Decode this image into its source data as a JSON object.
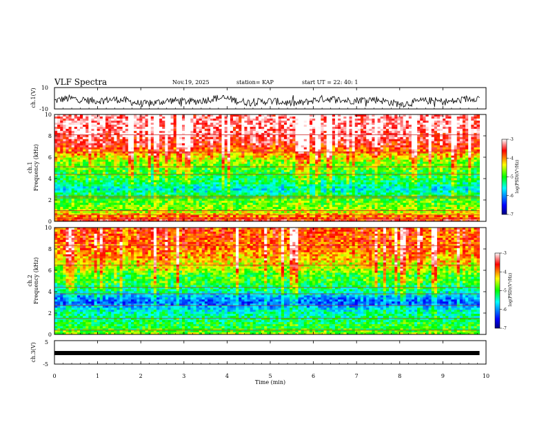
{
  "header": {
    "title": "VLF Spectra",
    "date": "Nov.19, 2025",
    "station": "station= KAP",
    "start": "start  UT  =   22: 40: 1"
  },
  "chart_data": [
    {
      "type": "line",
      "panel": "ch1-waveform",
      "ylabel": "ch.1(V)",
      "ylim": [
        -10,
        10
      ],
      "yticks": [
        "10",
        "-10"
      ],
      "xlim": [
        0,
        10
      ],
      "trace_color": "#000000",
      "data_end_min": 9.85,
      "baseline_v": -2.5,
      "noise_amplitude_v": 3.5
    },
    {
      "type": "heatmap",
      "panel": "ch1-spectrogram",
      "ylabel": "ch.1",
      "ylabel2": "Frequency  (kHz)",
      "ylim": [
        0,
        10
      ],
      "yticks": [
        "0",
        "2",
        "4",
        "6",
        "8",
        "10"
      ],
      "xlim": [
        0,
        10
      ],
      "data_end_min": 9.85,
      "colorbar": {
        "label": "log(PSD)(V²/Hz)",
        "range": [
          -7,
          -3
        ],
        "ticks": [
          "-3",
          "-4",
          "-5",
          "-6",
          "-7"
        ],
        "colors": [
          "#000080",
          "#0000ff",
          "#00ffff",
          "#00ff00",
          "#ffff00",
          "#ff0000",
          "#ffffff"
        ]
      },
      "profile": [
        {
          "f": 0.0,
          "v": -3.5
        },
        {
          "f": 0.5,
          "v": -4.0
        },
        {
          "f": 1.0,
          "v": -4.6
        },
        {
          "f": 1.5,
          "v": -4.8
        },
        {
          "f": 2.0,
          "v": -4.9
        },
        {
          "f": 2.5,
          "v": -5.2
        },
        {
          "f": 3.0,
          "v": -5.6
        },
        {
          "f": 3.5,
          "v": -5.3
        },
        {
          "f": 4.0,
          "v": -5.1
        },
        {
          "f": 4.5,
          "v": -5.0
        },
        {
          "f": 5.0,
          "v": -4.8
        },
        {
          "f": 5.5,
          "v": -4.7
        },
        {
          "f": 6.0,
          "v": -4.3
        },
        {
          "f": 7.0,
          "v": -3.6
        },
        {
          "f": 8.0,
          "v": -3.3
        },
        {
          "f": 9.0,
          "v": -3.2
        },
        {
          "f": 10.0,
          "v": -3.2
        }
      ],
      "lines_khz": [
        0.3,
        0.6,
        1.0,
        2.2,
        2.35,
        4.4,
        5.1,
        6.5,
        8.1
      ]
    },
    {
      "type": "heatmap",
      "panel": "ch2-spectrogram",
      "ylabel": "ch.2",
      "ylabel2": "Frequency  (kHz)",
      "ylim": [
        0,
        10
      ],
      "yticks": [
        "0",
        "2",
        "4",
        "6",
        "8",
        "10"
      ],
      "xlim": [
        0,
        10
      ],
      "data_end_min": 9.85,
      "colorbar": {
        "label": "log(PSD)(V²/Hz)",
        "range": [
          -7,
          -3
        ],
        "ticks": [
          "-3",
          "-4",
          "-5",
          "-6",
          "-7"
        ],
        "colors": [
          "#000080",
          "#0000ff",
          "#00ffff",
          "#00ff00",
          "#ffff00",
          "#ff0000",
          "#ffffff"
        ]
      },
      "profile": [
        {
          "f": 0.0,
          "v": -4.6
        },
        {
          "f": 0.5,
          "v": -5.0
        },
        {
          "f": 1.0,
          "v": -5.1
        },
        {
          "f": 1.5,
          "v": -5.3
        },
        {
          "f": 2.0,
          "v": -5.4
        },
        {
          "f": 2.5,
          "v": -5.8
        },
        {
          "f": 3.0,
          "v": -6.2
        },
        {
          "f": 3.5,
          "v": -5.9
        },
        {
          "f": 4.0,
          "v": -5.4
        },
        {
          "f": 4.5,
          "v": -5.2
        },
        {
          "f": 5.0,
          "v": -4.9
        },
        {
          "f": 5.5,
          "v": -5.0
        },
        {
          "f": 6.0,
          "v": -4.6
        },
        {
          "f": 7.0,
          "v": -4.2
        },
        {
          "f": 8.0,
          "v": -3.9
        },
        {
          "f": 9.0,
          "v": -3.8
        },
        {
          "f": 10.0,
          "v": -3.8
        }
      ],
      "lines_khz": [
        0.4,
        1.5,
        2.7,
        3.8,
        4.4,
        6.5,
        8.3
      ]
    },
    {
      "type": "line",
      "panel": "ch3-waveform",
      "ylabel": "ch.3(V)",
      "ylim": [
        -5,
        5
      ],
      "yticks": [
        "5",
        "-5"
      ],
      "xlim": [
        0,
        10
      ],
      "xlabel": "Time  (min)",
      "xticks": [
        "0",
        "1",
        "2",
        "3",
        "4",
        "5",
        "6",
        "7",
        "8",
        "9",
        "10"
      ],
      "data_end_min": 9.85,
      "trace_value_v": 0
    }
  ]
}
